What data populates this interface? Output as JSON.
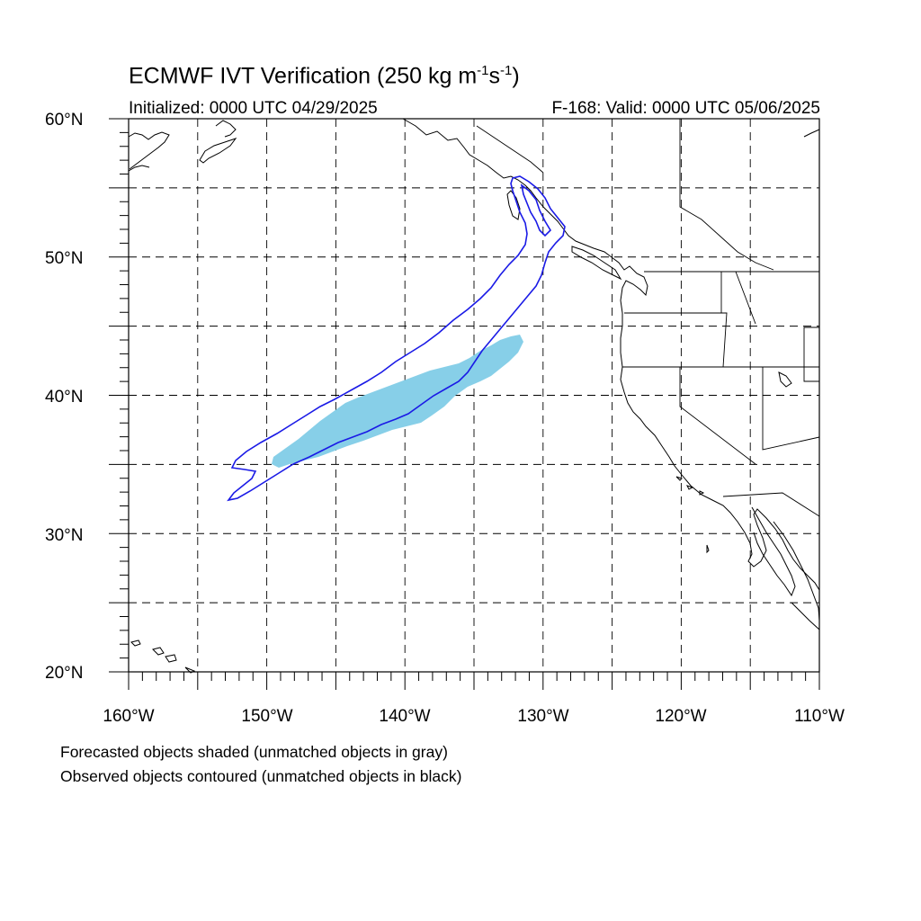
{
  "title": {
    "main": "ECMWF IVT Verification (250 kg m",
    "sup1": "-1",
    "mid": "s",
    "sup2": "-1",
    "end": ")",
    "initialized": "Initialized: 0000 UTC 04/29/2025",
    "valid": "F-168: Valid: 0000 UTC 05/06/2025"
  },
  "map": {
    "lon_range": [
      -160,
      -110
    ],
    "lat_range": [
      20,
      60
    ],
    "lat_labels": [
      "20°N",
      "30°N",
      "40°N",
      "50°N",
      "60°N"
    ],
    "lon_labels": [
      "160°W",
      "150°W",
      "140°W",
      "130°W",
      "120°W",
      "110°W"
    ],
    "grid_spacing_deg": 5,
    "colors": {
      "forecast_fill": "#87cfe8",
      "observed_contour": "#1a1ae6",
      "coastline": "#000000",
      "grid": "#000000"
    }
  },
  "legend": {
    "line1": "Forecasted objects shaded (unmatched objects in gray)",
    "line2": "Observed objects contoured (unmatched objects in black)"
  }
}
